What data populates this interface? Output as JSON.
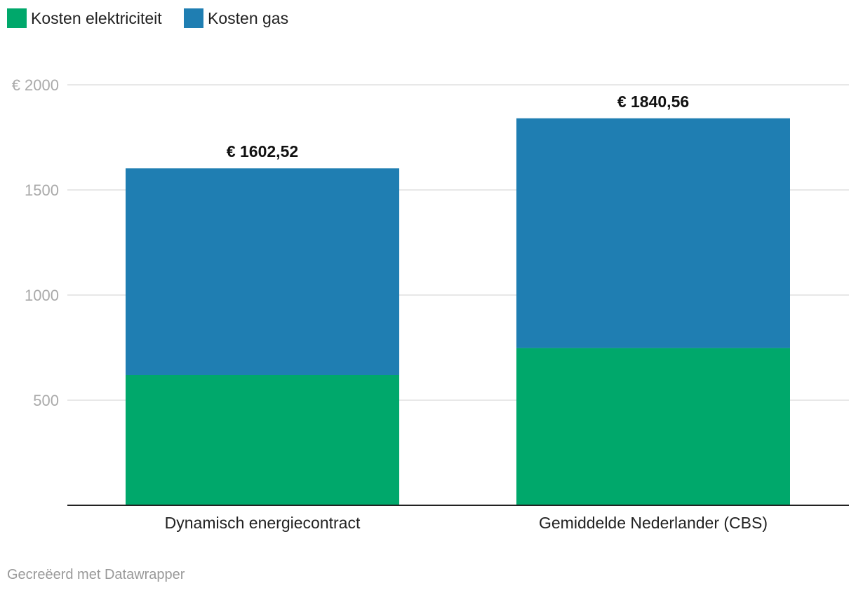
{
  "chart_data": {
    "type": "bar",
    "stacked": true,
    "title": "",
    "xlabel": "",
    "ylabel": "",
    "ylim": [
      0,
      2000
    ],
    "yticks": [
      {
        "value": 500,
        "label": "500"
      },
      {
        "value": 1000,
        "label": "1000"
      },
      {
        "value": 1500,
        "label": "1500"
      },
      {
        "value": 2000,
        "label": "€ 2000"
      }
    ],
    "grid": true,
    "legend_position": "top-left",
    "categories": [
      "Dynamisch energiecontract",
      "Gemiddelde Nederlander (CBS)"
    ],
    "series": [
      {
        "name": "Kosten elektriciteit",
        "color": "#00a86b",
        "values": [
          620,
          748
        ]
      },
      {
        "name": "Kosten gas",
        "color": "#1f7eb2",
        "values": [
          982.52,
          1092.56
        ]
      }
    ],
    "totals": [
      1602.52,
      1840.56
    ],
    "total_labels": [
      "€ 1602,52",
      "€ 1840,56"
    ]
  },
  "footer": {
    "credit": "Gecreëerd met Datawrapper"
  }
}
